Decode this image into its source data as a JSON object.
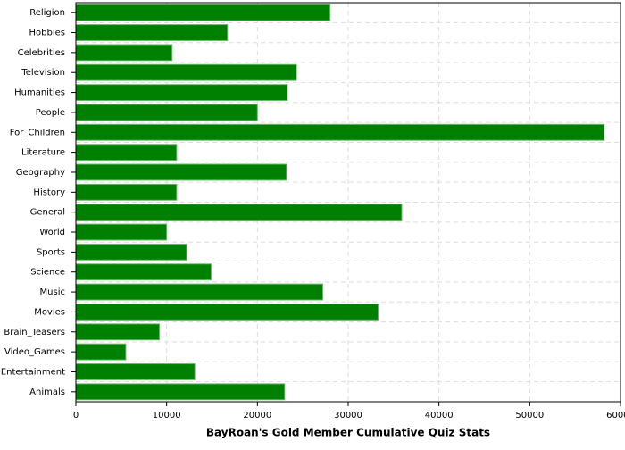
{
  "chart_data": {
    "type": "bar",
    "orientation": "horizontal",
    "title": "BayRoan's Gold Member Cumulative Quiz Stats",
    "categories": [
      "Religion",
      "Hobbies",
      "Celebrities",
      "Television",
      "Humanities",
      "People",
      "For_Children",
      "Literature",
      "Geography",
      "History",
      "General",
      "World",
      "Sports",
      "Science",
      "Music",
      "Movies",
      "Brain_Teasers",
      "Video_Games",
      "Entertainment",
      "Animals"
    ],
    "values": [
      28000,
      16700,
      10600,
      24300,
      23300,
      20000,
      58200,
      11100,
      23200,
      11100,
      35900,
      10000,
      12200,
      14900,
      27200,
      33300,
      9200,
      5500,
      13100,
      23000
    ],
    "color": "#008000",
    "xlim": [
      0,
      60000
    ],
    "xticks": [
      0,
      10000,
      20000,
      30000,
      40000,
      50000,
      60000
    ],
    "grid": true
  }
}
